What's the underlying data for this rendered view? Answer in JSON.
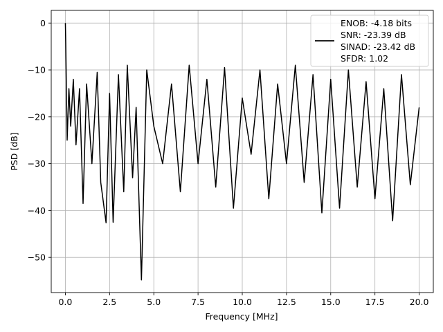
{
  "chart_data": {
    "type": "line",
    "title": "",
    "xlabel": "Frequency [MHz]",
    "ylabel": "PSD [dB]",
    "xlim": [
      -0.8,
      20.8
    ],
    "ylim": [
      -57.5,
      2.7
    ],
    "xticks": [
      0.0,
      2.5,
      5.0,
      7.5,
      10.0,
      12.5,
      15.0,
      17.5,
      20.0
    ],
    "xtick_labels": [
      "0.0",
      "2.5",
      "5.0",
      "7.5",
      "10.0",
      "12.5",
      "15.0",
      "17.5",
      "20.0"
    ],
    "yticks": [
      0,
      -10,
      -20,
      -30,
      -40,
      -50
    ],
    "ytick_labels": [
      "0",
      "−10",
      "−20",
      "−30",
      "−40",
      "−50"
    ],
    "grid": true,
    "legend_position": "top-right",
    "series_color": "#000000",
    "series": [
      {
        "name": "",
        "x": [
          0.0,
          0.02,
          0.05,
          0.1,
          0.2,
          0.3,
          0.45,
          0.6,
          0.8,
          1.0,
          1.2,
          1.5,
          1.8,
          2.0,
          2.3,
          2.5,
          2.7,
          3.0,
          3.3,
          3.5,
          3.8,
          4.0,
          4.3,
          4.6,
          5.0,
          5.5,
          6.0,
          6.5,
          7.0,
          7.5,
          8.0,
          8.5,
          9.0,
          9.5,
          10.0,
          10.5,
          11.0,
          11.5,
          12.0,
          12.5,
          13.0,
          13.5,
          14.0,
          14.5,
          15.0,
          15.5,
          16.0,
          16.5,
          17.0,
          17.5,
          18.0,
          18.5,
          19.0,
          19.5,
          20.0
        ],
        "y": [
          0.0,
          -4.0,
          -12.0,
          -25.0,
          -14.0,
          -22.0,
          -12.0,
          -26.0,
          -14.0,
          -38.5,
          -13.0,
          -30.0,
          -10.5,
          -34.0,
          -42.6,
          -15.0,
          -42.5,
          -11.0,
          -36.0,
          -9.0,
          -33.0,
          -18.0,
          -54.8,
          -10.0,
          -22.0,
          -30.0,
          -13.0,
          -36.0,
          -9.0,
          -30.0,
          -12.0,
          -35.0,
          -9.5,
          -39.5,
          -16.0,
          -28.0,
          -10.0,
          -37.5,
          -13.0,
          -30.0,
          -9.0,
          -34.0,
          -11.0,
          -40.5,
          -12.0,
          -39.5,
          -10.0,
          -35.0,
          -12.5,
          -37.5,
          -14.0,
          -42.2,
          -11.0,
          -34.5,
          -18.0
        ]
      }
    ],
    "legend_entries": [
      "ENOB: -4.18 bits",
      "SNR: -23.39 dB",
      "SINAD: -23.42 dB",
      "SFDR: 1.02"
    ]
  }
}
